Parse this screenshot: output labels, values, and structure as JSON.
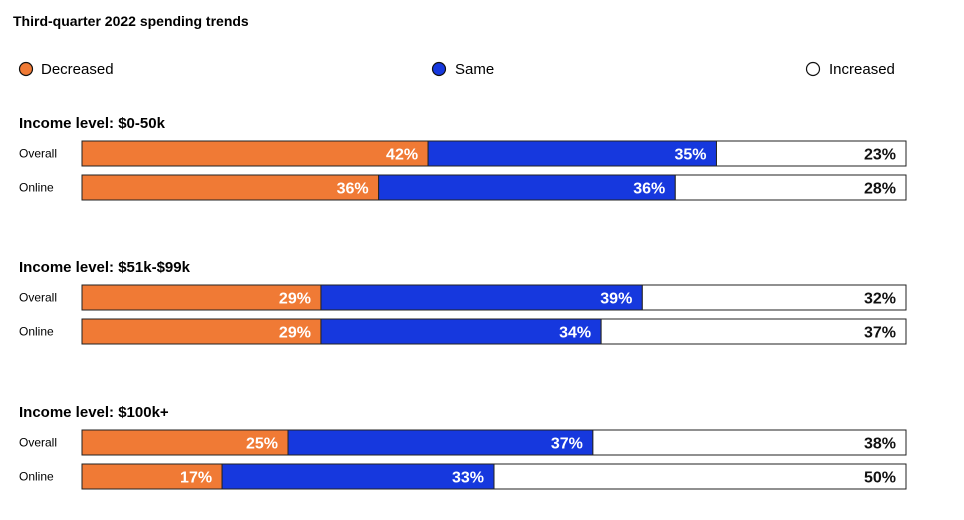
{
  "chart_data": {
    "type": "bar",
    "stacked": true,
    "orientation": "horizontal",
    "title": "Third-quarter 2022 spending trends",
    "legend_placement": "top",
    "series": [
      {
        "name": "Decreased",
        "color": "#F07A35"
      },
      {
        "name": "Same",
        "color": "#1638DE"
      },
      {
        "name": "Increased",
        "color": "#FFFFFF"
      }
    ],
    "groups": [
      {
        "title": "Income level: $0-50k",
        "rows": [
          {
            "label": "Overall",
            "values": [
              42,
              35,
              23
            ],
            "labels": [
              "42%",
              "35%",
              "23%"
            ]
          },
          {
            "label": "Online",
            "values": [
              36,
              36,
              28
            ],
            "labels": [
              "36%",
              "36%",
              "28%"
            ]
          }
        ]
      },
      {
        "title": "Income level: $51k-$99k",
        "rows": [
          {
            "label": "Overall",
            "values": [
              29,
              39,
              32
            ],
            "labels": [
              "29%",
              "39%",
              "32%"
            ]
          },
          {
            "label": "Online",
            "values": [
              29,
              34,
              37
            ],
            "labels": [
              "29%",
              "34%",
              "37%"
            ]
          }
        ]
      },
      {
        "title": "Income level: $100k+",
        "rows": [
          {
            "label": "Overall",
            "values": [
              25,
              37,
              38
            ],
            "labels": [
              "25%",
              "37%",
              "38%"
            ]
          },
          {
            "label": "Online",
            "values": [
              17,
              33,
              50
            ],
            "labels": [
              "17%",
              "33%",
              "50%"
            ]
          }
        ]
      }
    ],
    "xlim": [
      0,
      100
    ]
  }
}
